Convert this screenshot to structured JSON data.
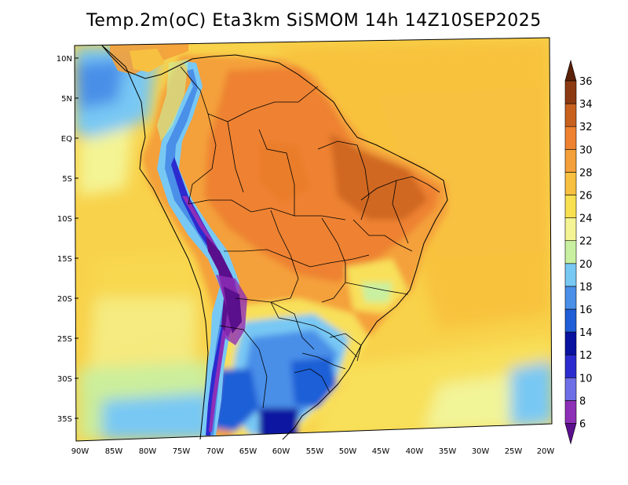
{
  "title": "Temp.2m(oC) Eta3km SiSMOM 14h 14Z10SEP2025",
  "lat_labels": [
    "10N",
    "5N",
    "EQ",
    "5S",
    "10S",
    "15S",
    "20S",
    "25S",
    "30S",
    "35S"
  ],
  "lon_labels": [
    "90W",
    "85W",
    "80W",
    "75W",
    "70W",
    "65W",
    "60W",
    "55W",
    "50W",
    "45W",
    "40W",
    "35W",
    "30W",
    "25W",
    "20W"
  ],
  "colorbar": {
    "labels": [
      "6",
      "8",
      "10",
      "12",
      "14",
      "16",
      "18",
      "20",
      "22",
      "24",
      "26",
      "28",
      "30",
      "32",
      "34",
      "36"
    ],
    "colors": [
      "#5a0f8c",
      "#8e2fb8",
      "#6e6ee6",
      "#2b2bcf",
      "#0a12a0",
      "#1f5ed6",
      "#4a8fe8",
      "#78c8f4",
      "#c8f0a0",
      "#f4f494",
      "#f8e050",
      "#f8c040",
      "#f4a03a",
      "#ee8230",
      "#c8601e",
      "#8c3a12",
      "#5a2008"
    ]
  },
  "chart_data": {
    "type": "map",
    "variable": "Temp.2m(oC)",
    "color_scale_min": 6,
    "color_scale_max": 36,
    "color_interval": 2
  }
}
